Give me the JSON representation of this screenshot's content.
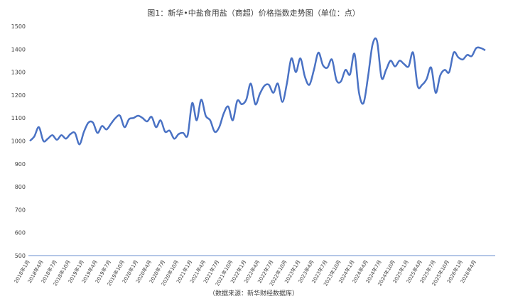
{
  "chart_data": {
    "type": "line",
    "title": "图1：新华•中盐食用盐（商超）价格指数走势图（单位：点）",
    "source": "（数据来源：新华财经数据库）",
    "categories": [
      "2018年1月",
      null,
      null,
      "2018年4月",
      null,
      null,
      "2018年7月",
      null,
      null,
      "2018年10月",
      null,
      null,
      "2019年1月",
      null,
      null,
      "2019年4月",
      null,
      null,
      "2019年7月",
      null,
      null,
      "2019年10月",
      null,
      null,
      "2020年1月",
      null,
      null,
      "2020年4月",
      null,
      null,
      "2020年7月",
      null,
      null,
      "2020年10月",
      null,
      null,
      "2021年1月",
      null,
      null,
      "2021年4月",
      null,
      null,
      "2021年7月",
      null,
      null,
      "2021年10月",
      null,
      null,
      "2022年1月",
      null,
      null,
      "2022年4月",
      null,
      null,
      "2022年7月",
      null,
      null,
      "2022年10月",
      null,
      null,
      "2023年1月",
      null,
      null,
      "2023年4月",
      null,
      null,
      "2023年7月",
      null,
      null,
      "2023年10月",
      null,
      null,
      "2024年1月",
      null,
      null,
      "2024年4月",
      null,
      null,
      "2024年7月",
      null,
      null,
      "2024年10月",
      null,
      null,
      "2025年1月",
      null,
      null,
      "2025年4月",
      null,
      null,
      "2025年7月",
      null,
      null,
      "2025年10月",
      null,
      null,
      "2026年1月",
      null,
      null,
      "2026年4月",
      null,
      null
    ],
    "series": [
      {
        "color": "#4a72c4",
        "values": [
          1000,
          1020,
          1060,
          1000,
          1010,
          1025,
          1005,
          1025,
          1010,
          1030,
          1035,
          985,
          1040,
          1080,
          1080,
          1035,
          1065,
          1050,
          1075,
          1100,
          1110,
          1060,
          1095,
          1100,
          1110,
          1100,
          1085,
          1105,
          1060,
          1090,
          1040,
          1045,
          1010,
          1030,
          1035,
          1025,
          1165,
          1090,
          1180,
          1110,
          1090,
          1040,
          1060,
          1120,
          1150,
          1090,
          1175,
          1160,
          1180,
          1250,
          1160,
          1205,
          1240,
          1245,
          1210,
          1250,
          1170,
          1250,
          1360,
          1300,
          1360,
          1280,
          1245,
          1310,
          1385,
          1330,
          1320,
          1355,
          1265,
          1260,
          1310,
          1290,
          1380,
          1210,
          1165,
          1280,
          1420,
          1435,
          1275,
          1310,
          1350,
          1325,
          1350,
          1335,
          1325,
          1385,
          1240,
          1245,
          1270,
          1320,
          1210,
          1285,
          1310,
          1300,
          1385,
          1365,
          1355,
          1375,
          1370,
          1405,
          1405,
          1395
        ]
      }
    ],
    "ylim": [
      500,
      1500
    ],
    "yticks": [
      500,
      600,
      700,
      800,
      900,
      1000,
      1100,
      1200,
      1300,
      1400,
      1500
    ]
  }
}
